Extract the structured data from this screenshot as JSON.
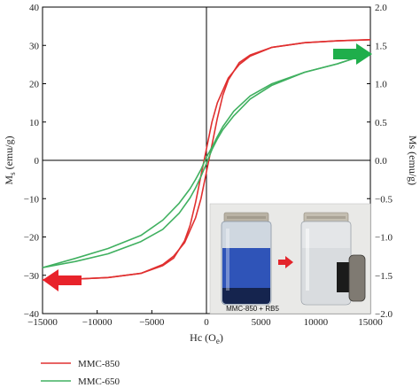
{
  "chart_data": {
    "type": "line",
    "xlabel": "Hc (Oe)",
    "ylabel_left": "Ms (emu/g)",
    "ylabel_right": "Ms (emu/g)",
    "xlim": [
      -15000,
      15000
    ],
    "ylim_left": [
      -40,
      40
    ],
    "ylim_right": [
      -2.0,
      2.0
    ],
    "x_ticks": [
      -15000,
      -10000,
      -5000,
      0,
      5000,
      10000,
      15000
    ],
    "x_tick_labels": [
      "−15000",
      "−10000",
      "−5000",
      "0",
      "5000",
      "10000",
      "15000"
    ],
    "y_left_ticks": [
      -40,
      -30,
      -20,
      -10,
      0,
      10,
      20,
      30,
      40
    ],
    "y_left_tick_labels": [
      "−40",
      "−30",
      "−20",
      "−10",
      "0",
      "10",
      "20",
      "30",
      "40"
    ],
    "y_right_ticks": [
      -2.0,
      -1.5,
      -1.0,
      -0.5,
      0.0,
      0.5,
      1.0,
      1.5,
      2.0
    ],
    "y_right_tick_labels": [
      "−2.0",
      "−1.5",
      "−1.0",
      "−0.5",
      "0.0",
      "0.5",
      "1.0",
      "1.5",
      "2.0"
    ],
    "grid": false,
    "legend_position": "bottom-left",
    "series": [
      {
        "name": "MMC-850",
        "color": "#e03030",
        "axis": "left",
        "branches": [
          {
            "x": [
              -15000,
              -12000,
              -9000,
              -6000,
              -4000,
              -3000,
              -2000,
              -1500,
              -1000,
              -500,
              0,
              500,
              1000,
              2000,
              3000,
              4000,
              6000,
              9000,
              12000,
              15000
            ],
            "y": [
              -31.2,
              -31,
              -30.6,
              -29.5,
              -27.5,
              -25.5,
              -21,
              -17,
              -11,
              -4,
              3,
              10,
              15,
              21.5,
              25,
              27.2,
              29.5,
              30.7,
              31.2,
              31.5
            ]
          },
          {
            "x": [
              15000,
              12000,
              9000,
              6000,
              4000,
              3000,
              2000,
              1500,
              1000,
              500,
              0,
              -500,
              -1000,
              -2000,
              -3000,
              -4000,
              -6000,
              -9000,
              -12000,
              -15000
            ],
            "y": [
              31.5,
              31.2,
              30.7,
              29.5,
              27.5,
              25.5,
              21,
              17,
              11,
              4,
              -3,
              -10,
              -15,
              -21.5,
              -25,
              -27.2,
              -29.5,
              -30.6,
              -31,
              -31.2
            ]
          }
        ]
      },
      {
        "name": "MMC-650",
        "color": "#40b060",
        "axis": "right",
        "branches": [
          {
            "x": [
              -15000,
              -12000,
              -9000,
              -6000,
              -4000,
              -2500,
              -1500,
              -1000,
              -500,
              0,
              500,
              1000,
              1500,
              2500,
              4000,
              6000,
              9000,
              12000,
              15000
            ],
            "y": [
              -1.4,
              -1.32,
              -1.22,
              -1.06,
              -0.9,
              -0.69,
              -0.49,
              -0.36,
              -0.21,
              -0.04,
              0.14,
              0.28,
              0.4,
              0.58,
              0.8,
              0.98,
              1.15,
              1.26,
              1.4
            ]
          },
          {
            "x": [
              15000,
              12000,
              9000,
              6000,
              4000,
              2500,
              1500,
              1000,
              500,
              0,
              -500,
              -1000,
              -1500,
              -2500,
              -4000,
              -6000,
              -9000,
              -12000,
              -15000
            ],
            "y": [
              1.4,
              1.26,
              1.15,
              1.0,
              0.84,
              0.64,
              0.44,
              0.31,
              0.17,
              0.04,
              -0.12,
              -0.25,
              -0.37,
              -0.56,
              -0.78,
              -0.98,
              -1.15,
              -1.28,
              -1.4
            ]
          }
        ]
      }
    ],
    "annotations": {
      "inset_caption": "MMC-850 + RB5",
      "arrow_left_color": "#e8232b",
      "arrow_right_color": "#1fae4b"
    }
  },
  "legend": [
    {
      "label": "MMC-850",
      "color": "#e03030"
    },
    {
      "label": "MMC-650",
      "color": "#40b060"
    }
  ]
}
